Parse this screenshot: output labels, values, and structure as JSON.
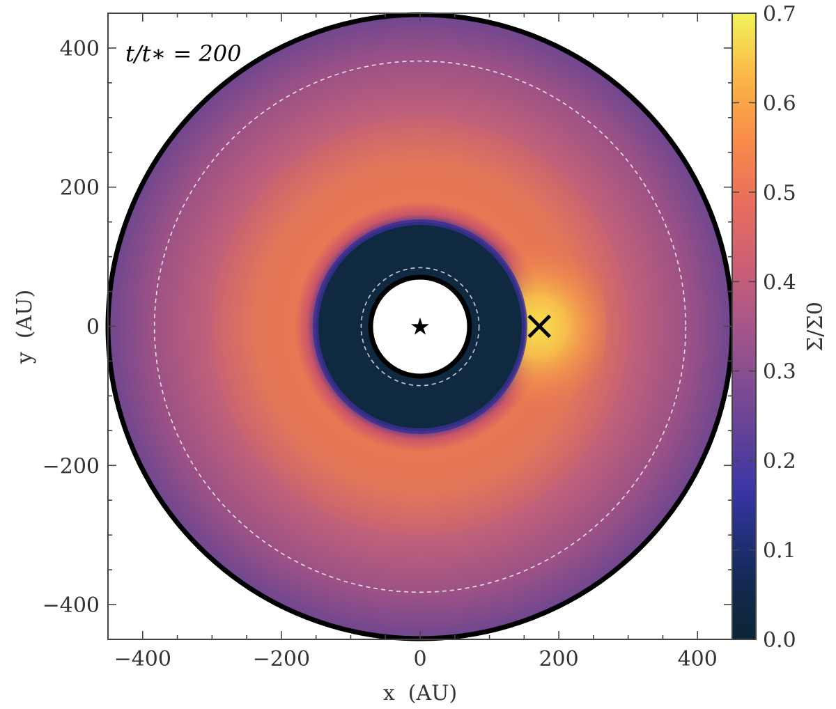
{
  "chart_data": {
    "type": "heatmap",
    "annotation": "t/t∗ = 200",
    "xlabel": "x  (AU)",
    "ylabel": "y  (AU)",
    "xlim": [
      -450,
      450
    ],
    "ylim": [
      -450,
      450
    ],
    "xticks": [
      {
        "value": -400,
        "label": "−400"
      },
      {
        "value": -200,
        "label": "−200"
      },
      {
        "value": 0,
        "label": "0"
      },
      {
        "value": 200,
        "label": "200"
      },
      {
        "value": 400,
        "label": "400"
      }
    ],
    "yticks": [
      {
        "value": 400,
        "label": "400"
      },
      {
        "value": 200,
        "label": "200"
      },
      {
        "value": 0,
        "label": "0"
      },
      {
        "value": -200,
        "label": "−200"
      },
      {
        "value": -400,
        "label": "−400"
      }
    ],
    "colorbar": {
      "label": "Σ/Σ0",
      "range": [
        0.0,
        0.7
      ],
      "colormap": "plasma-like (dark navy → indigo → purple → orange → yellow)",
      "ticks": [
        {
          "value": 0.0,
          "label": "0.0"
        },
        {
          "value": 0.1,
          "label": "0.1"
        },
        {
          "value": 0.2,
          "label": "0.2"
        },
        {
          "value": 0.3,
          "label": "0.3"
        },
        {
          "value": 0.4,
          "label": "0.4"
        },
        {
          "value": 0.5,
          "label": "0.5"
        },
        {
          "value": 0.6,
          "label": "0.6"
        },
        {
          "value": 0.7,
          "label": "0.7"
        }
      ]
    },
    "disk": {
      "outer_radius_au": 450,
      "inner_hole_radius_au": 70,
      "gap_outer_edge_au": 155,
      "dashed_circle_radii_au": [
        85,
        383
      ],
      "profile": [
        {
          "r": 70,
          "sigma": 0.01
        },
        {
          "r": 140,
          "sigma": 0.03
        },
        {
          "r": 160,
          "sigma": 0.45
        },
        {
          "r": 220,
          "sigma": 0.45
        },
        {
          "r": 300,
          "sigma": 0.36
        },
        {
          "r": 380,
          "sigma": 0.29
        },
        {
          "r": 450,
          "sigma": 0.26
        }
      ],
      "crescent_peak": {
        "x": 170,
        "y": 0,
        "sigma": 0.7
      }
    },
    "markers": [
      {
        "name": "star",
        "symbol": "★",
        "x": 0,
        "y": 0
      },
      {
        "name": "vortex",
        "symbol": "✕",
        "x": 172,
        "y": 0
      }
    ]
  }
}
